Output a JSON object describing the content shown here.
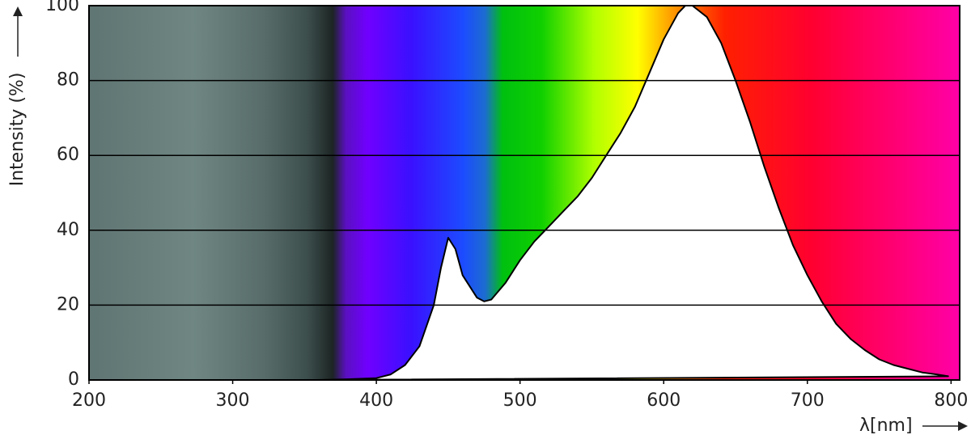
{
  "chart_data": {
    "type": "area",
    "y_label": "Intensity (%)",
    "x_label": "λ[nm]",
    "x": [
      360,
      380,
      400,
      410,
      420,
      430,
      440,
      445,
      450,
      455,
      460,
      470,
      475,
      480,
      490,
      500,
      510,
      520,
      530,
      540,
      550,
      560,
      570,
      580,
      590,
      600,
      610,
      615,
      620,
      630,
      640,
      650,
      660,
      670,
      680,
      690,
      700,
      710,
      720,
      730,
      740,
      750,
      760,
      770,
      780,
      790,
      798
    ],
    "values": [
      0,
      0.2,
      0.5,
      1.5,
      4,
      9,
      20,
      30,
      38,
      35,
      28,
      22,
      21,
      21.5,
      26,
      32,
      37,
      41,
      45,
      49,
      54,
      60,
      66,
      73,
      82,
      91,
      98,
      100,
      100,
      97,
      90,
      80,
      69,
      57,
      46,
      36,
      28,
      21,
      15,
      11,
      8,
      5.5,
      4,
      3,
      2,
      1.5,
      1
    ],
    "color": "#ffffff",
    "line_color": "#000000",
    "xlim": [
      200,
      806
    ],
    "ylim": [
      0,
      100
    ],
    "xticks": [
      200,
      300,
      400,
      500,
      600,
      700,
      800
    ],
    "yticks": [
      0,
      20,
      40,
      60,
      80,
      100
    ],
    "grid": true
  }
}
